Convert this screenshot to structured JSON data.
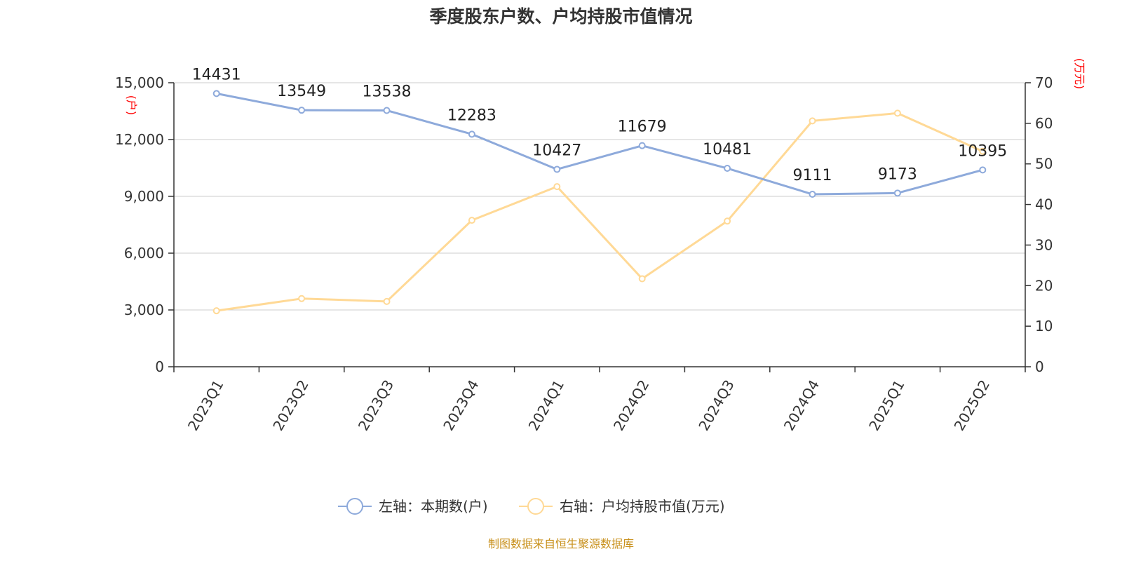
{
  "chart_data": {
    "type": "line",
    "title": "季度股东户数、户均持股市值情况",
    "categories": [
      "2023Q1",
      "2023Q2",
      "2023Q3",
      "2023Q4",
      "2024Q1",
      "2024Q2",
      "2024Q3",
      "2024Q4",
      "2025Q1",
      "2025Q2"
    ],
    "series": [
      {
        "name": "左轴：本期数(户)",
        "axis": "left",
        "color": "#8eaadb",
        "values": [
          14431,
          13549,
          13538,
          12283,
          10427,
          11679,
          10481,
          9111,
          9173,
          10395
        ],
        "labels": [
          "14431",
          "13549",
          "13538",
          "12283",
          "10427",
          "11679",
          "10481",
          "9111",
          "9173",
          "10395"
        ]
      },
      {
        "name": "右轴：户均持股市值(万元)",
        "axis": "right",
        "color": "#ffd996",
        "values": [
          13.8,
          16.8,
          16.1,
          36.1,
          44.4,
          21.7,
          35.9,
          60.6,
          62.5,
          53.1
        ]
      }
    ],
    "left_axis": {
      "unit": "(户)",
      "ylim": [
        0,
        15000
      ],
      "ticks": [
        0,
        3000,
        6000,
        9000,
        12000,
        15000
      ],
      "tick_labels": [
        "0",
        "3,000",
        "6,000",
        "9,000",
        "12,000",
        "15,000"
      ]
    },
    "right_axis": {
      "unit": "(万元)",
      "ylim": [
        0,
        70
      ],
      "ticks": [
        0,
        10,
        20,
        30,
        40,
        50,
        60,
        70
      ],
      "tick_labels": [
        "0",
        "10",
        "20",
        "30",
        "40",
        "50",
        "60",
        "70"
      ]
    },
    "grid": true,
    "legend_position": "bottom-center"
  },
  "source": "制图数据来自恒生聚源数据库"
}
